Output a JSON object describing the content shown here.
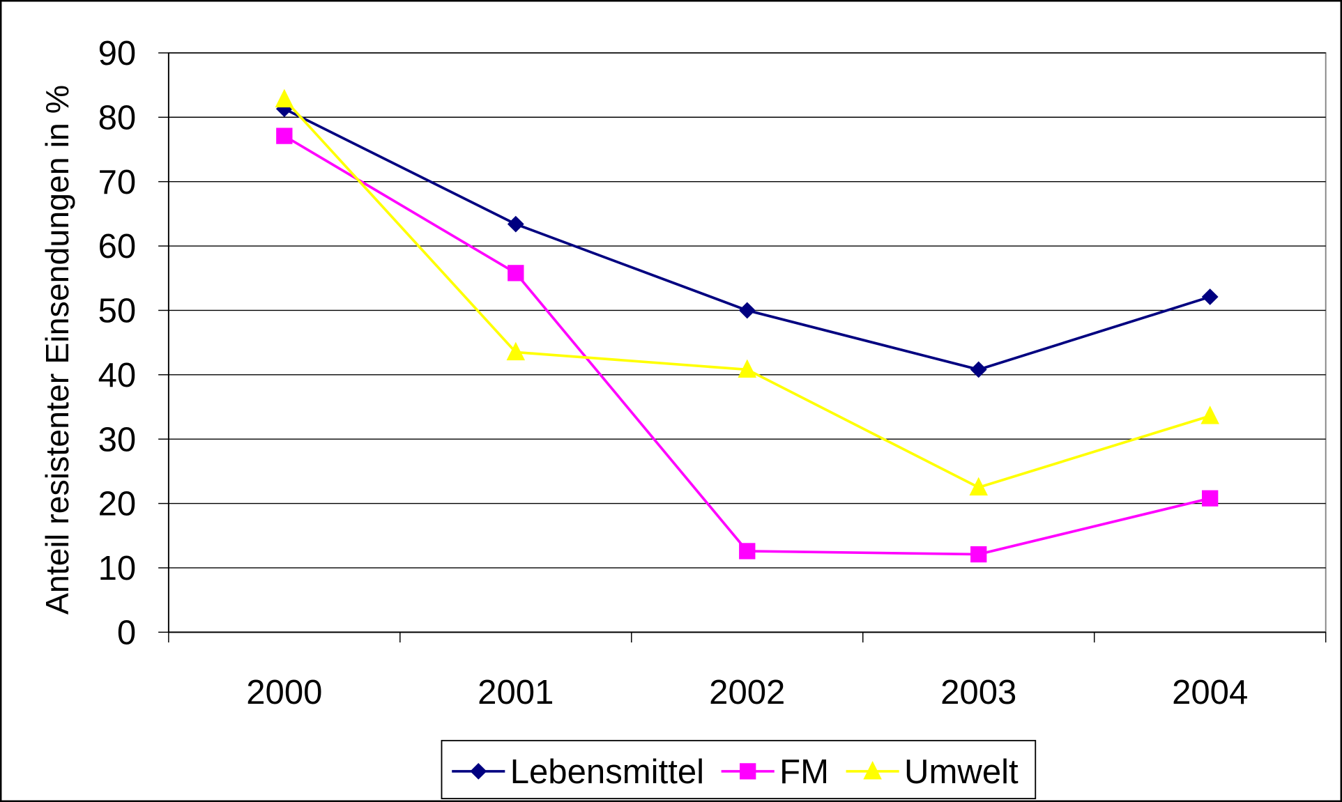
{
  "chart_data": {
    "type": "line",
    "y_label": "Anteil resistenter Einsendungen in %",
    "categories": [
      "2000",
      "2001",
      "2002",
      "2003",
      "2004"
    ],
    "series": [
      {
        "name": "Lebensmittel",
        "color": "#000080",
        "marker": "diamond",
        "values": [
          81.3,
          63.4,
          50.0,
          40.8,
          52.1
        ]
      },
      {
        "name": "FM",
        "color": "#ff00ff",
        "marker": "square",
        "values": [
          77.1,
          55.8,
          12.6,
          12.1,
          20.8
        ]
      },
      {
        "name": "Umwelt",
        "color": "#ffff00",
        "marker": "triangle",
        "values": [
          82.8,
          43.5,
          40.8,
          22.5,
          33.6
        ]
      }
    ],
    "ylim": [
      0,
      90
    ],
    "yticks": [
      0,
      10,
      20,
      30,
      40,
      50,
      60,
      70,
      80,
      90
    ],
    "grid": true,
    "legend": "bottom"
  }
}
